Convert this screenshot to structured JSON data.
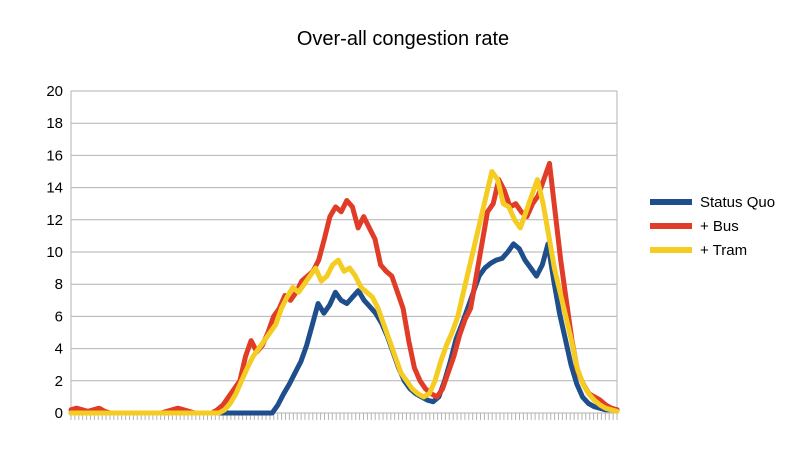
{
  "chart_data": {
    "type": "line",
    "title": "Over-all congestion rate",
    "xlabel": "",
    "ylabel": "",
    "ylim": [
      0,
      20
    ],
    "yticks": [
      "0",
      "2",
      "4",
      "6",
      "8",
      "10",
      "12",
      "14",
      "16",
      "18",
      "20"
    ],
    "grid": true,
    "legend_position": "right",
    "series": [
      {
        "name": "Status Quo",
        "color": "#1f4e8c",
        "values": [
          0,
          0,
          0,
          0,
          0,
          0,
          0,
          0,
          0,
          0,
          0,
          0,
          0,
          0,
          0,
          0,
          0,
          0,
          0,
          0,
          0,
          0,
          0,
          0,
          0,
          0,
          0,
          0,
          0,
          0,
          0,
          0,
          0,
          0,
          0,
          0,
          0.5,
          1.2,
          1.8,
          2.5,
          3.2,
          4.2,
          5.5,
          6.8,
          6.2,
          6.7,
          7.5,
          7.0,
          6.8,
          7.2,
          7.6,
          7.0,
          6.6,
          6.2,
          5.6,
          4.8,
          3.8,
          2.8,
          2.0,
          1.5,
          1.2,
          1.0,
          0.8,
          0.7,
          1.0,
          2.0,
          3.2,
          4.6,
          5.5,
          6.5,
          7.5,
          8.5,
          9.0,
          9.3,
          9.5,
          9.6,
          10.0,
          10.5,
          10.2,
          9.5,
          9.0,
          8.5,
          9.2,
          10.5,
          8.2,
          6.2,
          4.6,
          3.0,
          1.8,
          1.0,
          0.6,
          0.4,
          0.3,
          0.2,
          0.2,
          0.2
        ]
      },
      {
        "name": "+ Bus",
        "color": "#e03c28",
        "values": [
          0.2,
          0.3,
          0.2,
          0.1,
          0.2,
          0.3,
          0.1,
          0,
          0,
          0,
          0,
          0,
          0,
          0,
          0,
          0,
          0,
          0.1,
          0.2,
          0.3,
          0.2,
          0.1,
          0,
          0,
          0,
          0,
          0.2,
          0.5,
          1.0,
          1.5,
          2.0,
          3.5,
          4.5,
          3.8,
          4.2,
          5.0,
          6.0,
          6.5,
          7.3,
          7.0,
          7.5,
          8.2,
          8.5,
          8.8,
          9.5,
          10.8,
          12.2,
          12.8,
          12.5,
          13.2,
          12.8,
          11.5,
          12.2,
          11.5,
          10.8,
          9.2,
          8.8,
          8.5,
          7.5,
          6.5,
          4.5,
          2.8,
          2.0,
          1.5,
          1.2,
          1.0,
          1.5,
          2.5,
          3.5,
          4.8,
          5.8,
          6.5,
          8.5,
          10.5,
          12.5,
          13.0,
          14.5,
          13.8,
          12.8,
          13.0,
          12.5,
          12.2,
          13.0,
          13.5,
          14.5,
          15.5,
          12.5,
          9.5,
          7.0,
          4.5,
          2.6,
          1.8,
          1.2,
          1.0,
          0.8,
          0.5,
          0.3,
          0.2
        ]
      },
      {
        "name": "+ Tram",
        "color": "#f5cc22",
        "values": [
          0,
          0,
          0,
          0,
          0,
          0,
          0,
          0,
          0,
          0,
          0,
          0,
          0,
          0,
          0,
          0,
          0,
          0,
          0,
          0,
          0,
          0,
          0,
          0,
          0,
          0,
          0,
          0.2,
          0.6,
          1.2,
          2.0,
          2.8,
          3.5,
          4.0,
          4.5,
          5.0,
          5.5,
          6.5,
          7.2,
          7.8,
          7.5,
          8.0,
          8.5,
          9.0,
          8.2,
          8.5,
          9.2,
          9.5,
          8.8,
          9.0,
          8.5,
          7.8,
          7.5,
          7.2,
          6.5,
          5.5,
          4.5,
          3.5,
          2.5,
          2.0,
          1.5,
          1.2,
          1.0,
          1.2,
          2.0,
          3.2,
          4.2,
          5.0,
          6.0,
          7.5,
          9.0,
          10.5,
          12.0,
          13.5,
          15.0,
          14.5,
          13.0,
          12.8,
          12.0,
          11.5,
          12.5,
          13.5,
          14.5,
          13.0,
          11.0,
          9.0,
          7.5,
          6.0,
          4.5,
          2.8,
          1.8,
          1.2,
          0.8,
          0.5,
          0.3,
          0.2,
          0.1
        ]
      }
    ]
  }
}
